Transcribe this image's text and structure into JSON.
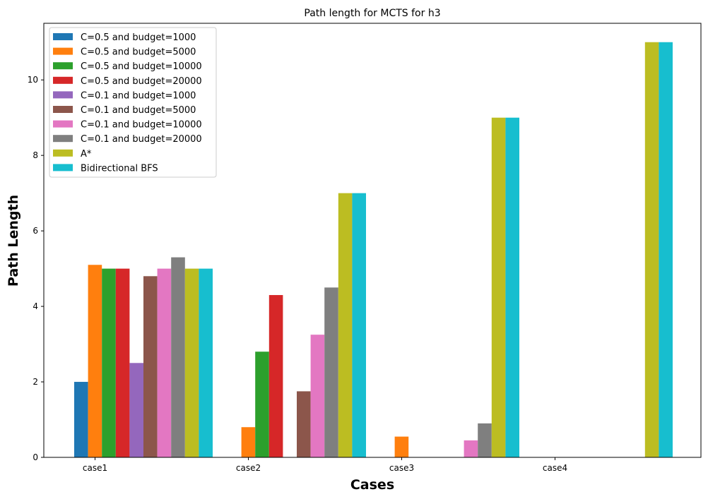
{
  "chart_data": {
    "type": "bar",
    "title": "Path length for MCTS for h3",
    "xlabel": "Cases",
    "ylabel": "Path Length",
    "categories": [
      "case1",
      "case2",
      "case3",
      "case4"
    ],
    "ylim": [
      0,
      11.5
    ],
    "yticks": [
      0,
      2,
      4,
      6,
      8,
      10
    ],
    "grid": false,
    "legend_position": "top-left",
    "series": [
      {
        "name": "C=0.5 and budget=1000",
        "color": "#1f77b4",
        "values": [
          2.0,
          0,
          0,
          0
        ]
      },
      {
        "name": "C=0.5 and budget=5000",
        "color": "#ff7f0e",
        "values": [
          5.1,
          0.8,
          0.55,
          0
        ]
      },
      {
        "name": "C=0.5 and budget=10000",
        "color": "#2ca02c",
        "values": [
          5.0,
          2.8,
          0,
          0
        ]
      },
      {
        "name": "C=0.5 and budget=20000",
        "color": "#d62728",
        "values": [
          5.0,
          4.3,
          0,
          0
        ]
      },
      {
        "name": "C=0.1 and budget=1000",
        "color": "#9467bd",
        "values": [
          2.5,
          0,
          0,
          0
        ]
      },
      {
        "name": "C=0.1 and budget=5000",
        "color": "#8c564b",
        "values": [
          4.8,
          1.75,
          0,
          0
        ]
      },
      {
        "name": "C=0.1 and budget=10000",
        "color": "#e377c2",
        "values": [
          5.0,
          3.25,
          0.45,
          0
        ]
      },
      {
        "name": "C=0.1 and budget=20000",
        "color": "#7f7f7f",
        "values": [
          5.3,
          4.5,
          0.9,
          0
        ]
      },
      {
        "name": "A*",
        "color": "#bcbd22",
        "values": [
          5.0,
          7.0,
          9.0,
          11.0
        ]
      },
      {
        "name": "Bidirectional BFS",
        "color": "#17becf",
        "values": [
          5.0,
          7.0,
          9.0,
          11.0
        ]
      }
    ]
  }
}
